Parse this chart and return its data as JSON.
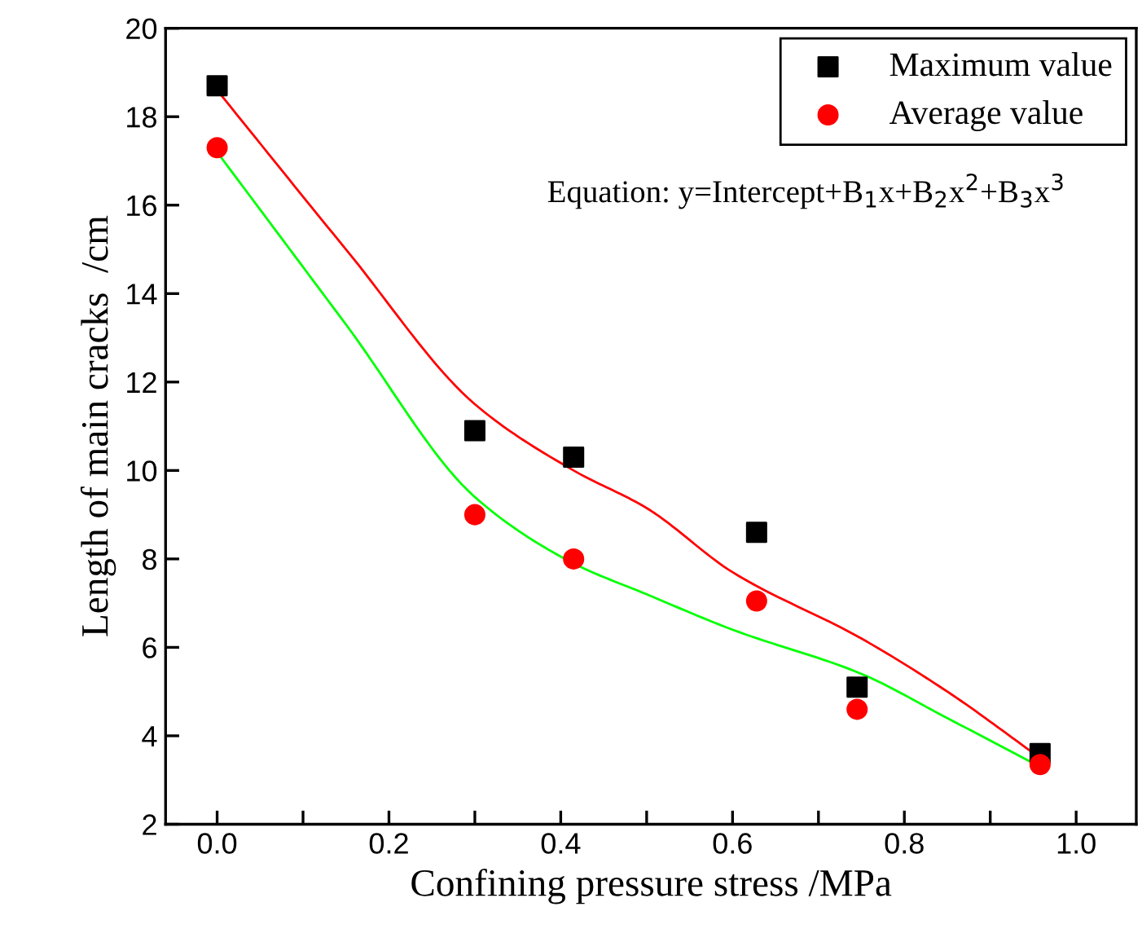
{
  "chart_data": {
    "type": "scatter",
    "xlabel": "Confining pressure stress /MPa",
    "ylabel": "Length of main cracks  /cm",
    "annotations": [
      "Equation: y=Intercept+B$_{1}$x+B$_{2}$x$^{2}$+B$_{3}$x$^{3}$"
    ],
    "series": [
      {
        "name": "Maximum value",
        "marker": "square",
        "color": "#000000",
        "x": [
          0.0,
          0.3,
          0.415,
          0.628,
          0.745,
          0.958
        ],
        "values": [
          18.7,
          10.9,
          10.3,
          8.6,
          5.1,
          3.6
        ]
      },
      {
        "name": "Average value",
        "marker": "circle",
        "color": "#ff0000",
        "x": [
          0.0,
          0.3,
          0.415,
          0.628,
          0.745,
          0.958
        ],
        "values": [
          17.3,
          9.0,
          8.0,
          7.05,
          4.6,
          3.35
        ]
      },
      {
        "type": "line",
        "marker": "none",
        "color": "#ff0000",
        "x": [
          0.0,
          0.15,
          0.3,
          0.415,
          0.5,
          0.6,
          0.75,
          0.85,
          0.958
        ],
        "values": [
          18.6,
          15.0,
          11.5,
          10.0,
          9.15,
          7.7,
          6.2,
          5.0,
          3.5
        ]
      },
      {
        "type": "line",
        "marker": "none",
        "color": "#00ff00",
        "x": [
          0.0,
          0.15,
          0.3,
          0.415,
          0.5,
          0.6,
          0.75,
          0.85,
          0.958
        ],
        "values": [
          17.2,
          13.3,
          9.4,
          7.9,
          7.2,
          6.4,
          5.4,
          4.4,
          3.3
        ]
      }
    ],
    "xlim": [
      -0.06,
      1.07
    ],
    "ylim": [
      2,
      20
    ],
    "xticks": [
      {
        "value": 0.0,
        "label": "0.0"
      },
      {
        "value": 0.1,
        "label": null
      },
      {
        "value": 0.2,
        "label": "0.2"
      },
      {
        "value": 0.3,
        "label": null
      },
      {
        "value": 0.4,
        "label": "0.4"
      },
      {
        "value": 0.5,
        "label": null
      },
      {
        "value": 0.6,
        "label": "0.6"
      },
      {
        "value": 0.7,
        "label": null
      },
      {
        "value": 0.8,
        "label": "0.8"
      },
      {
        "value": 0.9,
        "label": null
      },
      {
        "value": 1.0,
        "label": "1.0"
      }
    ],
    "yticks": [
      2,
      4,
      6,
      8,
      10,
      12,
      14,
      16,
      18,
      20
    ],
    "grid": false,
    "legend": "top right"
  }
}
